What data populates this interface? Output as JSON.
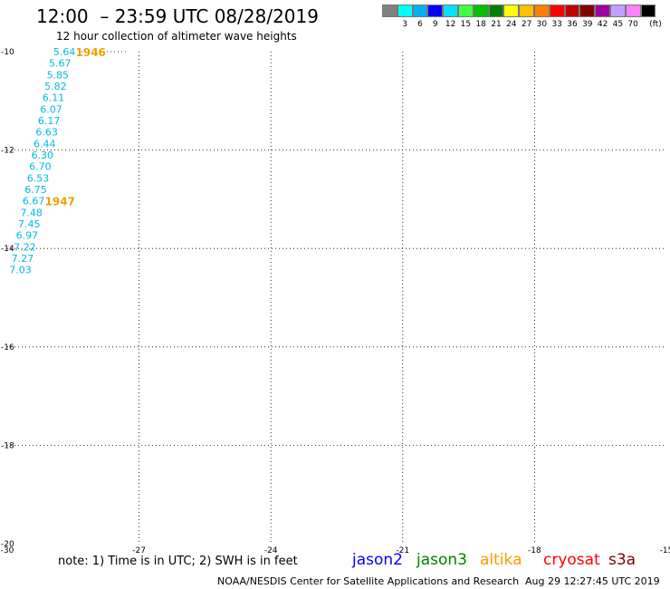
{
  "header": {
    "title": "12:00  – 23:59 UTC 08/28/2019",
    "subtitle": "12 hour collection of altimeter wave heights"
  },
  "color_scale": {
    "unit_label": "(ft)",
    "swatches": [
      "#808080",
      "#00ffff",
      "#00b0f0",
      "#0000ff",
      "#00e0ff",
      "#40ff40",
      "#00c000",
      "#008000",
      "#ffff00",
      "#ffc000",
      "#ff8000",
      "#ff0000",
      "#c00000",
      "#800000",
      "#a000a0",
      "#c0a0ff",
      "#ff80ff",
      "#000000"
    ],
    "labels": [
      "3",
      "6",
      "9",
      "12",
      "15",
      "18",
      "21",
      "24",
      "27",
      "30",
      "33",
      "36",
      "39",
      "42",
      "45",
      "70"
    ]
  },
  "map": {
    "x_ticks": [
      "-30",
      "-27",
      "-24",
      "-21",
      "-18",
      "-15"
    ],
    "y_ticks": [
      "-10",
      "-12",
      "-14",
      "-16",
      "-18",
      "-20"
    ],
    "x_range": [
      -30,
      -15
    ],
    "y_range": [
      -10,
      -20
    ]
  },
  "track_altika": {
    "color": "#00b8e6",
    "points": [
      {
        "lon": -28.7,
        "lat": -10.0,
        "label": "5.64"
      },
      {
        "lon": -28.8,
        "lat": -10.23,
        "label": "5.67"
      },
      {
        "lon": -28.85,
        "lat": -10.47,
        "label": "5.85"
      },
      {
        "lon": -28.9,
        "lat": -10.7,
        "label": "5.82"
      },
      {
        "lon": -28.95,
        "lat": -10.93,
        "label": "6.11"
      },
      {
        "lon": -29.0,
        "lat": -11.17,
        "label": "6.07"
      },
      {
        "lon": -29.05,
        "lat": -11.4,
        "label": "6.17"
      },
      {
        "lon": -29.1,
        "lat": -11.63,
        "label": "6.63"
      },
      {
        "lon": -29.15,
        "lat": -11.87,
        "label": "6.44"
      },
      {
        "lon": -29.2,
        "lat": -12.1,
        "label": "6.30"
      },
      {
        "lon": -29.25,
        "lat": -12.33,
        "label": "6.70"
      },
      {
        "lon": -29.3,
        "lat": -12.57,
        "label": "6.53"
      },
      {
        "lon": -29.35,
        "lat": -12.8,
        "label": "6.75"
      },
      {
        "lon": -29.4,
        "lat": -13.03,
        "label": "6.67"
      },
      {
        "lon": -29.45,
        "lat": -13.27,
        "label": "7.48"
      },
      {
        "lon": -29.5,
        "lat": -13.5,
        "label": "7.45"
      },
      {
        "lon": -29.55,
        "lat": -13.73,
        "label": "6.97"
      },
      {
        "lon": -29.6,
        "lat": -13.97,
        "label": "7.22"
      },
      {
        "lon": -29.65,
        "lat": -14.2,
        "label": "7.27"
      },
      {
        "lon": -29.7,
        "lat": -14.43,
        "label": "7.03"
      }
    ],
    "time_labels": [
      {
        "lon": -28.1,
        "lat": -10.0,
        "label": "1946"
      },
      {
        "lon": -28.8,
        "lat": -13.03,
        "label": "1947"
      }
    ]
  },
  "note": "note:  1) Time is in UTC;  2) SWH is in feet",
  "legend": [
    {
      "name": "jason2",
      "color": "#0000ff"
    },
    {
      "name": "jason3",
      "color": "#008000"
    },
    {
      "name": "altika",
      "color": "#ff9900"
    },
    {
      "name": "cryosat",
      "color": "#ff0000"
    },
    {
      "name": "s3a",
      "color": "#800000"
    }
  ],
  "footer": {
    "credit": "NOAA/NESDIS Center for Satellite Applications and Research",
    "timestamp": "Aug 29 12:27:45 UTC 2019"
  }
}
